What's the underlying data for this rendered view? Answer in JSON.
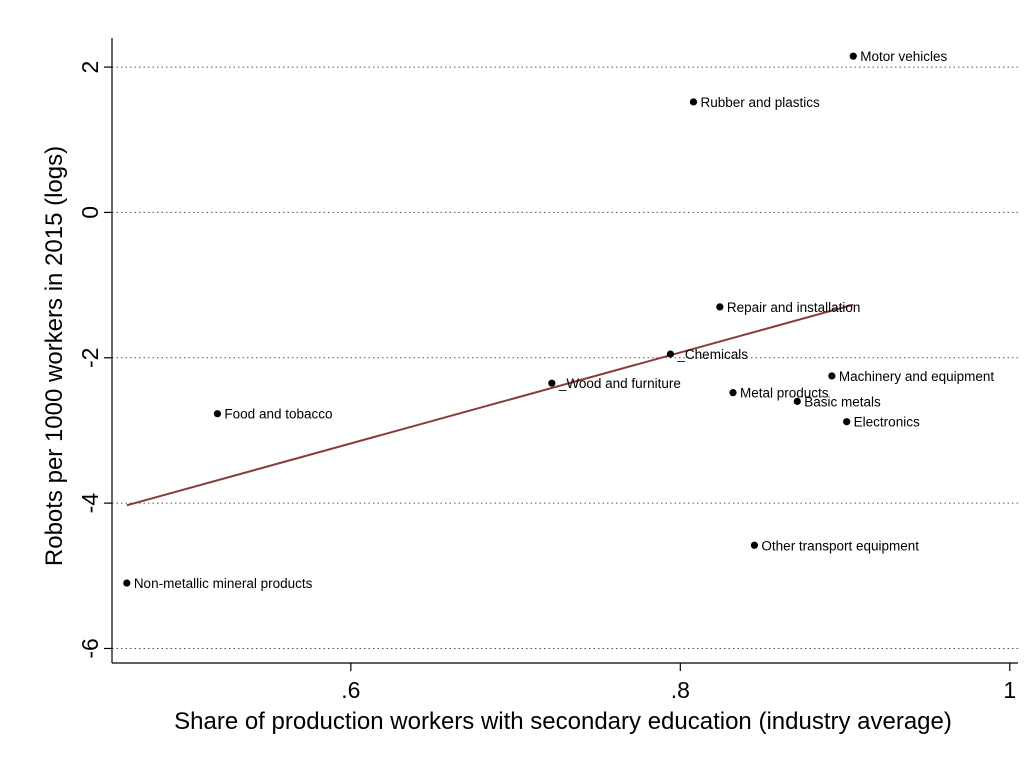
{
  "chart_data": {
    "type": "scatter",
    "xlabel": "Share of production workers with secondary education (industry average)",
    "ylabel": "Robots per 1000 workers in 2015 (logs)",
    "xlim": [
      0.455,
      1.005
    ],
    "ylim": [
      -6.2,
      2.4
    ],
    "xticks": [
      {
        "value": 0.6,
        "label": ".6"
      },
      {
        "value": 0.8,
        "label": ".8"
      },
      {
        "value": 1.0,
        "label": "1"
      }
    ],
    "yticks": [
      {
        "value": -6,
        "label": "-6"
      },
      {
        "value": -4,
        "label": "-4"
      },
      {
        "value": -2,
        "label": "-2"
      },
      {
        "value": 0,
        "label": "0"
      },
      {
        "value": 2,
        "label": "2"
      }
    ],
    "grid": "horizontal-dotted",
    "points": [
      {
        "label": "Motor vehicles",
        "x": 0.905,
        "y": 2.15
      },
      {
        "label": "Rubber and plastics",
        "x": 0.808,
        "y": 1.52
      },
      {
        "label": "Repair and installation",
        "x": 0.824,
        "y": -1.3
      },
      {
        "label": "_Chemicals",
        "x": 0.794,
        "y": -1.95
      },
      {
        "label": "_Wood and furniture",
        "x": 0.722,
        "y": -2.35
      },
      {
        "label": "Food and tobacco",
        "x": 0.519,
        "y": -2.77
      },
      {
        "label": "Metal products",
        "x": 0.832,
        "y": -2.48
      },
      {
        "label": "Basic metals",
        "x": 0.871,
        "y": -2.6
      },
      {
        "label": "Machinery and equipment",
        "x": 0.892,
        "y": -2.25
      },
      {
        "label": "Electronics",
        "x": 0.901,
        "y": -2.88
      },
      {
        "label": "Other transport equipment",
        "x": 0.845,
        "y": -4.58
      },
      {
        "label": "Non-metallic mineral products",
        "x": 0.464,
        "y": -5.1
      }
    ],
    "fit_line": {
      "color": "#8b3a3a",
      "x": [
        0.464,
        0.905
      ],
      "y": [
        -4.03,
        -1.27
      ]
    }
  }
}
